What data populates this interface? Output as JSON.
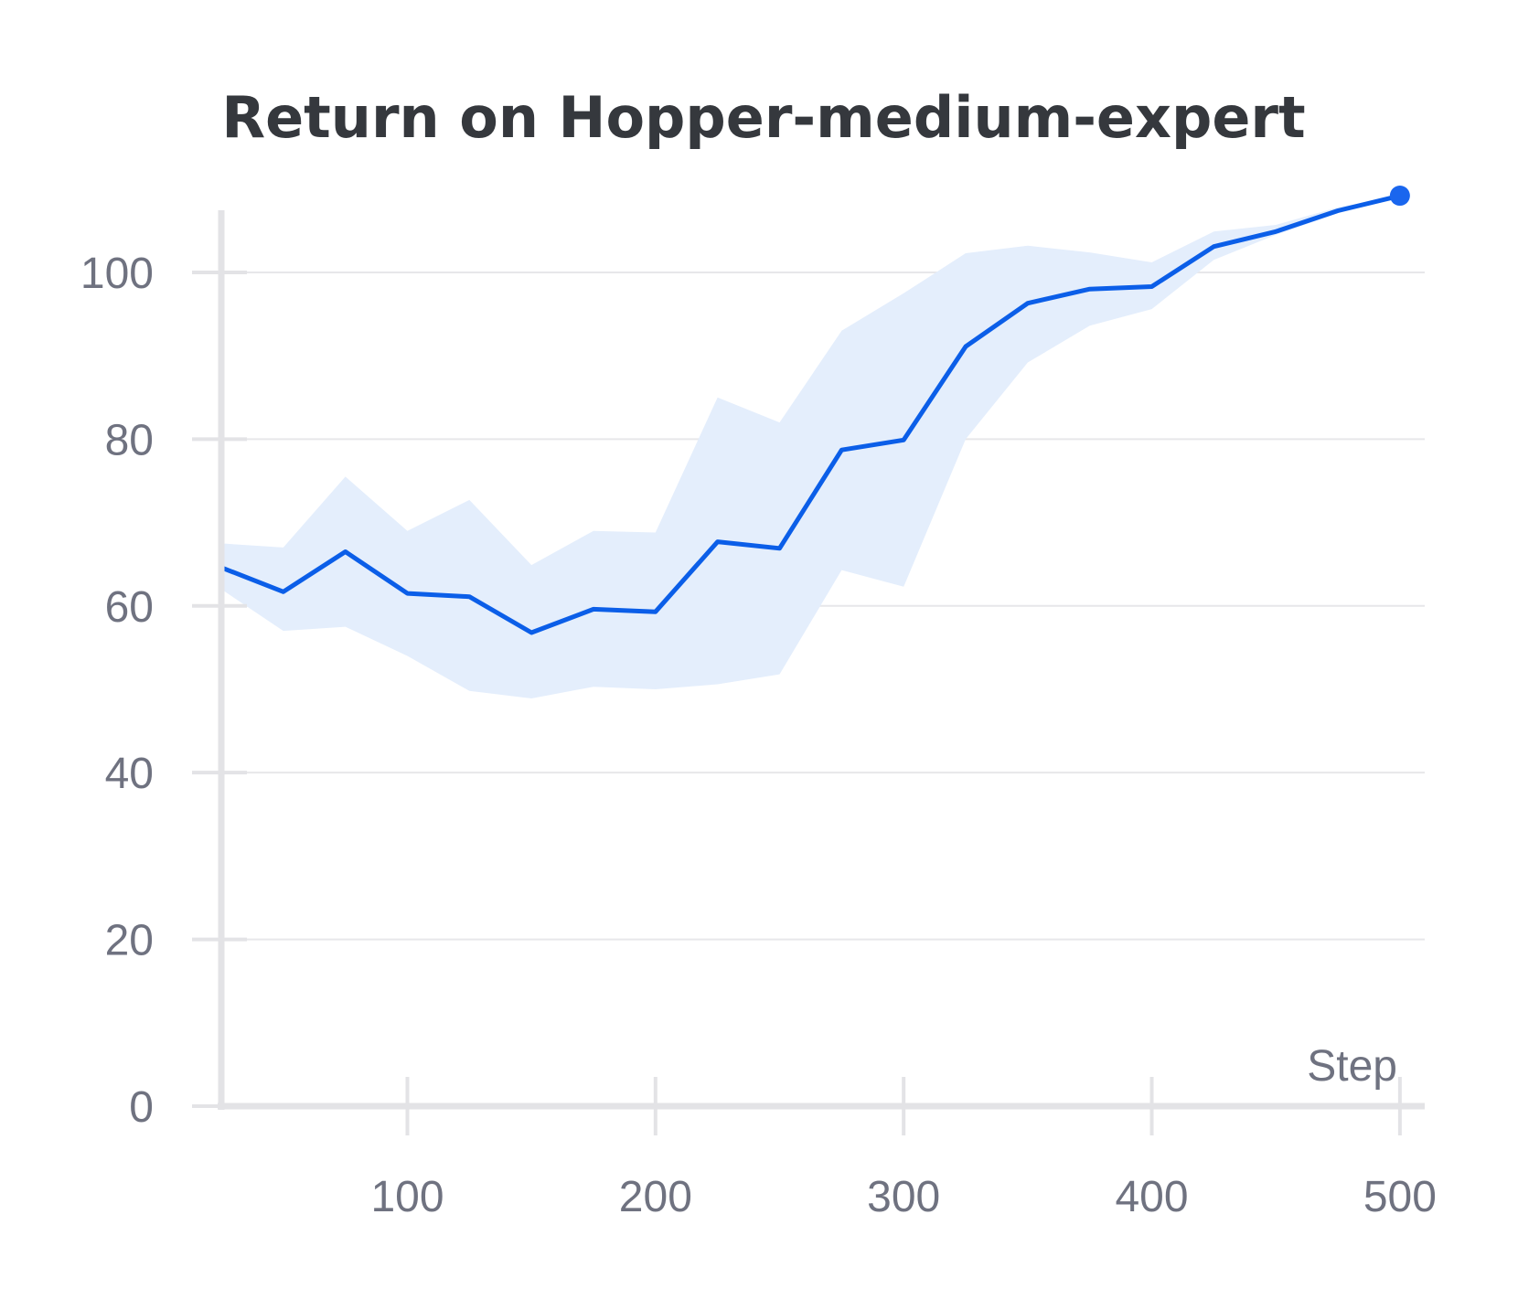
{
  "chart_data": {
    "type": "line",
    "title": "Return on Hopper-medium-expert",
    "xlabel": "Step",
    "ylabel": "",
    "xlim": [
      25,
      510
    ],
    "ylim": [
      0,
      108
    ],
    "xticks": [
      100,
      200,
      300,
      400,
      500
    ],
    "yticks": [
      0,
      20,
      40,
      60,
      80,
      100
    ],
    "grid": true,
    "x": [
      25,
      50,
      75,
      100,
      125,
      150,
      175,
      200,
      225,
      250,
      275,
      300,
      325,
      350,
      375,
      400,
      425,
      450,
      475,
      500
    ],
    "series": [
      {
        "values": [
          64.6,
          61.7,
          66.5,
          61.5,
          61.1,
          56.8,
          59.6,
          59.3,
          67.7,
          66.9,
          78.7,
          79.9,
          91.1,
          96.3,
          98.0,
          98.3,
          103.1,
          104.9,
          107.4,
          109.2
        ],
        "lower": [
          62.0,
          57.0,
          57.5,
          54.0,
          49.8,
          48.9,
          50.3,
          50.0,
          50.6,
          51.8,
          64.3,
          62.3,
          80.0,
          89.2,
          93.6,
          95.6,
          101.5,
          104.5,
          107.1,
          109.2
        ],
        "upper": [
          67.5,
          67.0,
          75.5,
          69.0,
          72.7,
          64.9,
          69.0,
          68.8,
          85.0,
          82.0,
          93.0,
          97.5,
          102.3,
          103.2,
          102.4,
          101.2,
          104.9,
          105.7,
          107.8,
          109.2
        ],
        "color": "#0b5ee8",
        "band_color": "#e4eefc"
      }
    ]
  }
}
